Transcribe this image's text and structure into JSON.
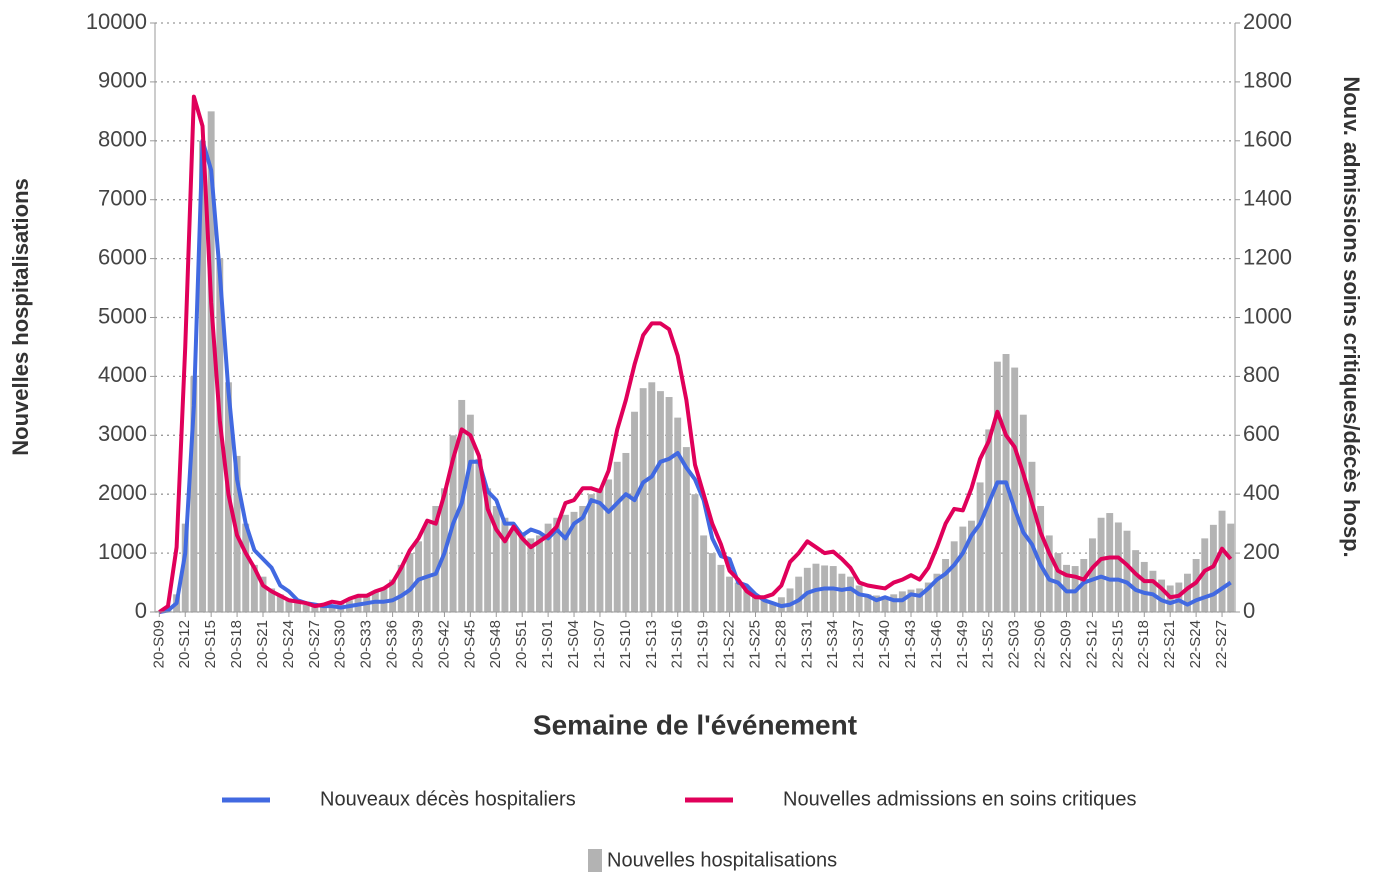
{
  "chart_data": {
    "type": "bar",
    "xlabel": "Semaine de l'événement",
    "ylabel": "Nouvelles hospitalisations",
    "y2label": "Nouv. admissions soins critiques/décès hosp.",
    "categories": [
      "20-S09",
      null,
      null,
      "20-S12",
      null,
      null,
      "20-S15",
      null,
      null,
      "20-S18",
      null,
      null,
      "20-S21",
      null,
      null,
      "20-S24",
      null,
      null,
      "20-S27",
      null,
      null,
      "20-S30",
      null,
      null,
      "20-S33",
      null,
      null,
      "20-S36",
      null,
      null,
      "20-S39",
      null,
      null,
      "20-S42",
      null,
      null,
      "20-S45",
      null,
      null,
      "20-S48",
      null,
      null,
      "20-S51",
      null,
      null,
      "21-S01",
      null,
      null,
      "21-S04",
      null,
      null,
      "21-S07",
      null,
      null,
      "21-S10",
      null,
      null,
      "21-S13",
      null,
      null,
      "21-S16",
      null,
      null,
      "21-S19",
      null,
      null,
      "21-S22",
      null,
      null,
      "21-S25",
      null,
      null,
      "21-S28",
      null,
      null,
      "21-S31",
      null,
      null,
      "21-S34",
      null,
      null,
      "21-S37",
      null,
      null,
      "21-S40",
      null,
      null,
      "21-S43",
      null,
      null,
      "21-S46",
      null,
      null,
      "21-S49",
      null,
      null,
      "21-S52",
      null,
      null,
      "22-S03",
      null,
      null,
      "22-S06",
      null,
      null,
      "22-S09",
      null,
      null,
      "22-S12",
      null,
      null,
      "22-S15",
      null,
      null,
      "22-S18",
      null,
      null,
      "22-S21",
      null,
      null,
      "22-S24",
      null,
      null,
      "22-S27",
      null
    ],
    "series": [
      {
        "name": "Nouveaux décès hospitaliers",
        "color": "#4169e1",
        "type": "line",
        "axis": "y2",
        "values": [
          0,
          5,
          30,
          200,
          700,
          1600,
          1500,
          1150,
          750,
          450,
          300,
          210,
          180,
          150,
          90,
          70,
          40,
          30,
          25,
          20,
          20,
          15,
          20,
          25,
          30,
          35,
          35,
          40,
          55,
          75,
          110,
          120,
          130,
          200,
          300,
          370,
          510,
          510,
          410,
          380,
          300,
          300,
          260,
          280,
          270,
          250,
          280,
          250,
          300,
          320,
          380,
          370,
          340,
          370,
          400,
          380,
          440,
          460,
          510,
          520,
          540,
          490,
          450,
          380,
          250,
          190,
          180,
          100,
          90,
          60,
          40,
          30,
          20,
          25,
          40,
          65,
          75,
          80,
          80,
          75,
          80,
          60,
          55,
          40,
          50,
          40,
          40,
          60,
          55,
          80,
          110,
          130,
          160,
          200,
          260,
          300,
          370,
          440,
          440,
          350,
          270,
          230,
          160,
          110,
          100,
          70,
          70,
          100,
          110,
          120,
          110,
          110,
          100,
          75,
          65,
          60,
          40,
          30,
          40,
          25,
          40,
          50,
          60,
          80,
          100
        ]
      },
      {
        "name": "Nouvelles admissions en soins critiques",
        "color": "#e0005a",
        "type": "line",
        "axis": "y2",
        "values": [
          0,
          20,
          220,
          900,
          1750,
          1650,
          1050,
          650,
          400,
          260,
          200,
          150,
          90,
          70,
          55,
          40,
          35,
          30,
          20,
          25,
          35,
          30,
          45,
          55,
          55,
          70,
          80,
          100,
          150,
          210,
          250,
          310,
          300,
          400,
          520,
          620,
          600,
          530,
          350,
          280,
          240,
          290,
          250,
          220,
          240,
          260,
          290,
          370,
          380,
          420,
          420,
          410,
          480,
          620,
          720,
          840,
          940,
          980,
          980,
          960,
          870,
          720,
          500,
          400,
          300,
          230,
          140,
          110,
          70,
          50,
          50,
          60,
          90,
          170,
          200,
          240,
          220,
          200,
          205,
          180,
          150,
          100,
          90,
          85,
          80,
          100,
          110,
          125,
          110,
          150,
          220,
          300,
          350,
          345,
          420,
          520,
          580,
          680,
          600,
          560,
          470,
          370,
          270,
          200,
          140,
          125,
          120,
          110,
          150,
          180,
          185,
          185,
          160,
          130,
          105,
          105,
          80,
          50,
          55,
          80,
          100,
          140,
          155,
          215,
          180
        ]
      },
      {
        "name": "Nouvelles hospitalisations",
        "color": "#b3b3b3",
        "type": "bar",
        "axis": "y",
        "values": [
          20,
          100,
          300,
          1500,
          4000,
          8000,
          8500,
          6000,
          3900,
          2650,
          1500,
          800,
          600,
          400,
          300,
          200,
          150,
          120,
          100,
          100,
          100,
          150,
          200,
          250,
          300,
          350,
          400,
          550,
          800,
          1000,
          1200,
          1500,
          1800,
          2100,
          3000,
          3600,
          3350,
          2600,
          2100,
          1800,
          1600,
          1400,
          1300,
          1250,
          1300,
          1500,
          1600,
          1650,
          1700,
          1800,
          2000,
          2100,
          2250,
          2550,
          2700,
          3400,
          3800,
          3900,
          3750,
          3650,
          3300,
          2800,
          2000,
          1300,
          1000,
          800,
          600,
          500,
          400,
          300,
          200,
          150,
          250,
          400,
          600,
          750,
          820,
          790,
          780,
          650,
          600,
          450,
          300,
          280,
          250,
          300,
          350,
          380,
          400,
          500,
          650,
          900,
          1200,
          1450,
          1550,
          2200,
          3100,
          4250,
          4380,
          4150,
          3350,
          2550,
          1800,
          1300,
          1000,
          800,
          780,
          900,
          1250,
          1600,
          1680,
          1520,
          1380,
          1050,
          850,
          700,
          550,
          450,
          500,
          650,
          900,
          1250,
          1480,
          1720,
          1500
        ]
      }
    ],
    "ylim": [
      0,
      10000
    ],
    "yticks": [
      0,
      1000,
      2000,
      3000,
      4000,
      5000,
      6000,
      7000,
      8000,
      9000,
      10000
    ],
    "y2lim": [
      0,
      2000
    ],
    "y2ticks": [
      0,
      200,
      400,
      600,
      800,
      1000,
      1200,
      1400,
      1600,
      1800,
      2000
    ],
    "grid": true
  }
}
